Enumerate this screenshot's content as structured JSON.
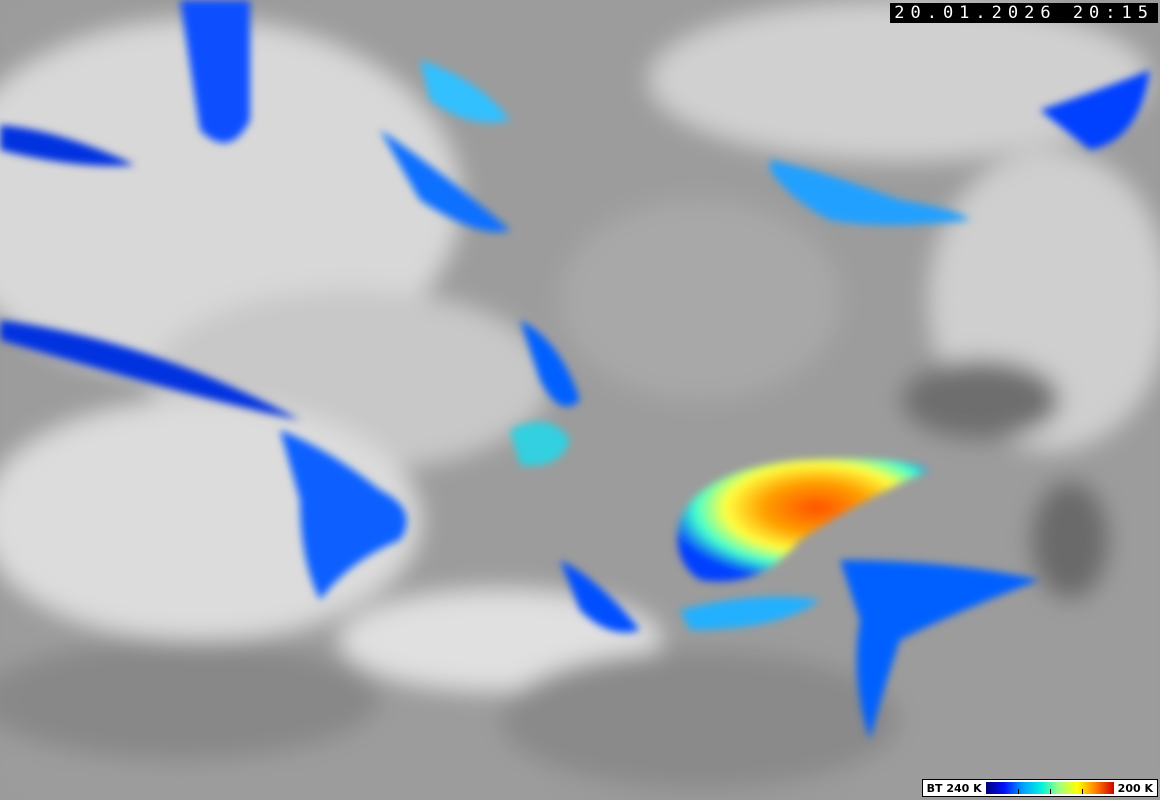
{
  "timestamp": "20.01.2026 20:15",
  "legend": {
    "label_left": "BT 240 K",
    "label_right": "200 K",
    "colors": [
      "#00007a",
      "#0010ff",
      "#00a0ff",
      "#00f0e0",
      "#a0ff80",
      "#ffff00",
      "#ff8000",
      "#d00000"
    ]
  },
  "background_color": "#9a9a9a"
}
